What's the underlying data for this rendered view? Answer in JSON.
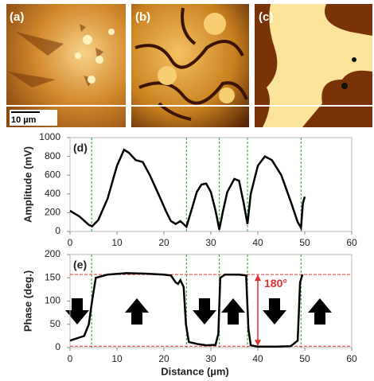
{
  "images": [
    {
      "label": "(a)"
    },
    {
      "label": "(b)"
    },
    {
      "label": "(c)"
    }
  ],
  "scale_bar": "10 µm",
  "chart_data": [
    {
      "type": "line",
      "label": "(d)",
      "y_label": "Amplitude (mV)",
      "xlim": [
        0,
        60
      ],
      "xticks": [
        0,
        10,
        20,
        30,
        40,
        50,
        60
      ],
      "ylim": [
        0,
        1000
      ],
      "yticks": [
        0,
        200,
        400,
        600,
        800,
        1000
      ],
      "vlines": [
        4.6,
        24.8,
        31.8,
        37.8,
        49.2
      ],
      "vline_color": "#2a9d2a",
      "series": [
        {
          "color": "#000000",
          "x": [
            0,
            2,
            4,
            4.7,
            6,
            8,
            10,
            11.5,
            12.5,
            14,
            15.5,
            17,
            19,
            20.5,
            21.5,
            22.5,
            23.5,
            24.8,
            26,
            27,
            28,
            29,
            30,
            31,
            31.8,
            32.5,
            33.5,
            35,
            36,
            37,
            37.8,
            38.5,
            40,
            41.5,
            43,
            45,
            47,
            48.5,
            49.2,
            49.6,
            50
          ],
          "values": [
            220,
            160,
            70,
            55,
            120,
            350,
            700,
            870,
            840,
            760,
            740,
            600,
            380,
            210,
            110,
            80,
            110,
            50,
            250,
            420,
            500,
            510,
            420,
            220,
            20,
            200,
            420,
            560,
            540,
            300,
            80,
            400,
            700,
            800,
            760,
            600,
            320,
            100,
            40,
            300,
            370
          ]
        }
      ]
    },
    {
      "type": "line",
      "label": "(e)",
      "y_label": "Phase (deg.)",
      "x_label": "Distance (µm)",
      "xlim": [
        0,
        60
      ],
      "xticks": [
        0,
        10,
        20,
        30,
        40,
        50,
        60
      ],
      "ylim": [
        0,
        200
      ],
      "yticks": [
        0,
        50,
        100,
        150,
        200
      ],
      "vlines": [
        4.6,
        24.8,
        31.8,
        37.8,
        49.2
      ],
      "vline_color": "#2a9d2a",
      "hlines": [
        157,
        3
      ],
      "hline_color": "#e03030",
      "annotation": "180°",
      "series": [
        {
          "color": "#000000",
          "x": [
            0,
            3,
            4,
            4.7,
            5.5,
            8,
            12,
            16,
            20,
            21.5,
            22.5,
            23,
            23.5,
            24.2,
            24.7,
            25.3,
            27,
            29,
            31,
            31.6,
            32,
            33,
            36,
            37.5,
            38,
            38.5,
            40,
            44,
            47,
            48.5,
            49,
            49.5
          ],
          "values": [
            15,
            25,
            50,
            100,
            150,
            157,
            160,
            159,
            157,
            155,
            140,
            137,
            145,
            130,
            50,
            12,
            8,
            5,
            6,
            30,
            150,
            157,
            157,
            155,
            40,
            5,
            2,
            2,
            3,
            15,
            140,
            157
          ]
        }
      ]
    }
  ]
}
